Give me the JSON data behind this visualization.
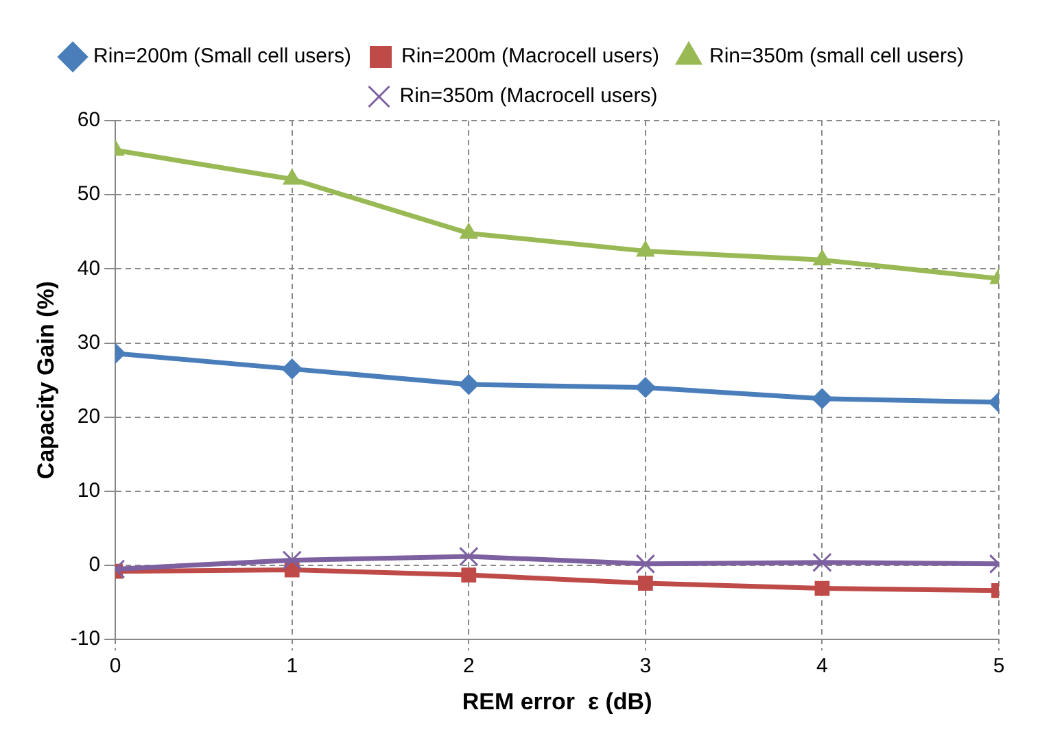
{
  "chart_data": {
    "type": "line",
    "xlabel": "REM error  ε (dB)",
    "ylabel": "Capacity Gain (%)",
    "x": [
      0,
      1,
      2,
      3,
      4,
      5
    ],
    "xlim": [
      0,
      5
    ],
    "xticks": [
      0,
      1,
      2,
      3,
      4,
      5
    ],
    "ylim": [
      -10,
      60
    ],
    "yticks": [
      -10,
      0,
      10,
      20,
      30,
      40,
      50,
      60
    ],
    "grid": true,
    "legend": "top",
    "line_style": "solid",
    "series": [
      {
        "name": "Rin=200m (Small cell users)",
        "color": "#4a7ebb",
        "marker": "diamond",
        "values": [
          28.6,
          26.5,
          24.4,
          24,
          22.5,
          22
        ]
      },
      {
        "name": "Rin=200m (Macrocell users)",
        "color": "#be4b48",
        "marker": "square",
        "values": [
          -0.8,
          -0.6,
          -1.3,
          -2.4,
          -3.1,
          -3.4
        ]
      },
      {
        "name": "Rin=350m (small cell users)",
        "color": "#98b954",
        "marker": "triangle",
        "values": [
          56,
          52.1,
          44.8,
          42.4,
          41.2,
          38.7
        ]
      },
      {
        "name": "Rin=350m (Macrocell users)",
        "color": "#7d60a0",
        "marker": "cross",
        "values": [
          -0.5,
          0.7,
          1.2,
          0.2,
          0.4,
          0.2
        ]
      }
    ]
  }
}
